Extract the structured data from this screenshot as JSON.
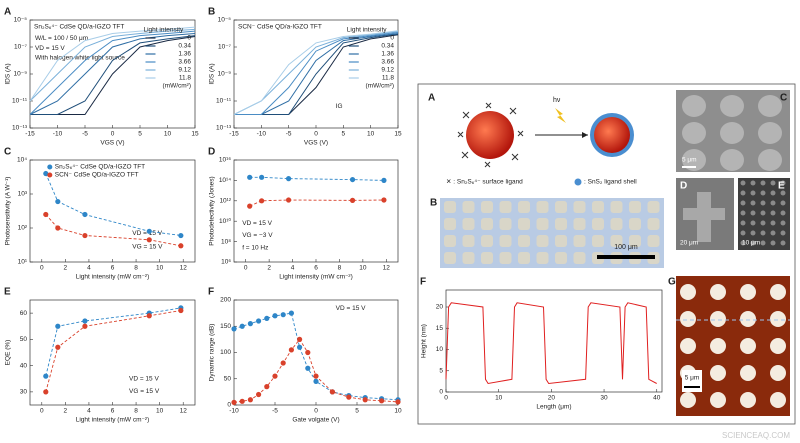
{
  "chart_data": [
    {
      "type": "line",
      "panel": "A",
      "title": "Sn₂S₆⁴⁻ CdSe QD/a-IGZO TFT",
      "annotations": [
        "W/L = 100 / 50 μm",
        "VD = 15 V",
        "With halogen white light source"
      ],
      "xlabel": "VGS (V)",
      "ylabel": "IDS (A)",
      "log_y": true,
      "legend": "right",
      "legend_title": "Light intensity",
      "legend_unit": "(mW/cm²)",
      "x": [
        -15,
        -10,
        -5,
        0,
        5,
        10,
        15
      ],
      "xlim": [
        -15,
        15
      ],
      "xticks": [
        -15,
        -10,
        -5,
        0,
        5,
        10,
        15
      ],
      "ylim": [
        1e-13,
        1e-05
      ],
      "yticks": [
        {
          "value": 1e-13,
          "label": "10⁻¹³"
        },
        {
          "value": 1e-11,
          "label": "10⁻¹¹"
        },
        {
          "value": 1e-09,
          "label": "10⁻⁹"
        },
        {
          "value": 1e-07,
          "label": "10⁻⁷"
        },
        {
          "value": 1e-05,
          "label": "10⁻⁵"
        }
      ],
      "series": [
        {
          "name": "0",
          "color": "#1a2a44",
          "values": [
            1e-12,
            1e-12,
            1e-12,
            1e-09,
            1e-07,
            3e-07,
            6e-07
          ]
        },
        {
          "name": "0.34",
          "color": "#1f4e79",
          "values": [
            1e-12,
            1e-12,
            1e-11,
            1e-08,
            2e-07,
            4e-07,
            7e-07
          ]
        },
        {
          "name": "1.36",
          "color": "#2f6ea5",
          "values": [
            1e-12,
            1e-11,
            1e-09,
            1e-07,
            4e-07,
            7e-07,
            1e-06
          ]
        },
        {
          "name": "3.66",
          "color": "#4a8cc4",
          "values": [
            1e-12,
            1e-10,
            1e-08,
            3e-07,
            7e-07,
            1e-06,
            1.5e-06
          ]
        },
        {
          "name": "9.12",
          "color": "#7ab0da",
          "values": [
            1e-11,
            1e-09,
            1e-07,
            6e-07,
            1e-06,
            1.5e-06,
            2e-06
          ]
        },
        {
          "name": "11.8",
          "color": "#a8cde8",
          "values": [
            1e-11,
            1e-08,
            3e-07,
            1e-06,
            1.5e-06,
            2e-06,
            3e-06
          ]
        }
      ]
    },
    {
      "type": "line",
      "panel": "B",
      "title": "SCN⁻ CdSe QD/a-IGZO TFT",
      "annotations": [
        "IG"
      ],
      "xlabel": "VGS (V)",
      "ylabel": "IDS (A)",
      "log_y": true,
      "legend": "right",
      "legend_title": "Light intensity",
      "legend_unit": "(mW/cm²)",
      "x": [
        -15,
        -10,
        -5,
        0,
        5,
        10,
        15
      ],
      "xlim": [
        -15,
        15
      ],
      "xticks": [
        -15,
        -10,
        -5,
        0,
        5,
        10,
        15
      ],
      "ylim": [
        1e-13,
        1e-05
      ],
      "yticks": [
        {
          "value": 1e-13,
          "label": "10⁻¹³"
        },
        {
          "value": 1e-11,
          "label": "10⁻¹¹"
        },
        {
          "value": 1e-09,
          "label": "10⁻⁹"
        },
        {
          "value": 1e-07,
          "label": "10⁻⁷"
        },
        {
          "value": 1e-05,
          "label": "10⁻⁵"
        }
      ],
      "series": [
        {
          "name": "0",
          "color": "#1a2a44",
          "values": [
            1e-12,
            1e-12,
            1e-12,
            1e-10,
            1e-07,
            4e-07,
            8e-07
          ]
        },
        {
          "name": "0.34",
          "color": "#1f4e79",
          "values": [
            1e-12,
            1e-12,
            1e-12,
            1e-09,
            2e-07,
            5e-07,
            9e-07
          ]
        },
        {
          "name": "1.36",
          "color": "#2f6ea5",
          "values": [
            1e-12,
            1e-12,
            1e-11,
            1e-08,
            3e-07,
            6e-07,
            1e-06
          ]
        },
        {
          "name": "3.66",
          "color": "#4a8cc4",
          "values": [
            1e-12,
            1e-12,
            1e-10,
            5e-08,
            4e-07,
            7e-07,
            1.2e-06
          ]
        },
        {
          "name": "9.12",
          "color": "#7ab0da",
          "values": [
            1e-12,
            1e-11,
            1e-09,
            1e-07,
            5e-07,
            8e-07,
            1.4e-06
          ]
        },
        {
          "name": "11.8",
          "color": "#a8cde8",
          "values": [
            1e-12,
            1e-11,
            5e-09,
            2e-07,
            6e-07,
            9e-07,
            1.6e-06
          ]
        }
      ]
    },
    {
      "type": "line",
      "panel": "C",
      "annotations": [
        "VD = 15 V",
        "VG = 15 V"
      ],
      "xlabel": "Light intensity (mW cm⁻²)",
      "ylabel": "Photosensitivity (A W⁻¹)",
      "log_y": true,
      "legend": "top",
      "markers": true,
      "dashed": true,
      "x": [
        0.34,
        1.36,
        3.66,
        9.12,
        11.8
      ],
      "xlim": [
        -1,
        13
      ],
      "xticks": [
        0,
        2,
        4,
        6,
        8,
        10,
        12
      ],
      "ylim": [
        10,
        10000
      ],
      "yticks": [
        {
          "value": 10,
          "label": "10¹"
        },
        {
          "value": 100,
          "label": "10²"
        },
        {
          "value": 1000,
          "label": "10³"
        },
        {
          "value": 10000,
          "label": "10⁴"
        }
      ],
      "series": [
        {
          "name": "Sn₂S₆⁴⁻ CdSe QD/a-IGZO TFT",
          "color": "#2e86c8",
          "values": [
            4000,
            600,
            250,
            80,
            60
          ]
        },
        {
          "name": "SCN⁻ CdSe QD/a-IGZO TFT",
          "color": "#d9412b",
          "values": [
            250,
            100,
            60,
            45,
            30
          ]
        }
      ]
    },
    {
      "type": "line",
      "panel": "D",
      "annotations": [
        "VD = 15 V",
        "VG = −3 V",
        "f = 10 Hz"
      ],
      "xlabel": "Light intensity (mW cm⁻²)",
      "ylabel": "Photodetectivity (Jones)",
      "log_y": true,
      "markers": true,
      "dashed": true,
      "x": [
        0.34,
        1.36,
        3.66,
        9.12,
        11.8
      ],
      "xlim": [
        -1,
        13
      ],
      "xticks": [
        0,
        2,
        4,
        6,
        8,
        10,
        12
      ],
      "ylim": [
        1000000.0,
        1e+16
      ],
      "yticks": [
        {
          "value": 1000000.0,
          "label": "10⁶"
        },
        {
          "value": 100000000.0,
          "label": "10⁸"
        },
        {
          "value": 10000000000.0,
          "label": "10¹⁰"
        },
        {
          "value": 1000000000000.0,
          "label": "10¹²"
        },
        {
          "value": 100000000000000.0,
          "label": "10¹⁴"
        },
        {
          "value": 1e+16,
          "label": "10¹⁶"
        }
      ],
      "series": [
        {
          "color": "#2e86c8",
          "values": [
            200000000000000.0,
            200000000000000.0,
            150000000000000.0,
            120000000000000.0,
            100000000000000.0
          ]
        },
        {
          "color": "#d9412b",
          "values": [
            300000000000.0,
            1000000000000.0,
            1200000000000.0,
            1100000000000.0,
            1200000000000.0
          ]
        }
      ]
    },
    {
      "type": "line",
      "panel": "E",
      "annotations": [
        "VD = 15 V",
        "VG = 15 V"
      ],
      "xlabel": "Light intensity (mW cm⁻²)",
      "ylabel": "EQE (%)",
      "markers": true,
      "dashed": true,
      "x": [
        0.34,
        1.36,
        3.66,
        9.12,
        11.8
      ],
      "xlim": [
        -1,
        13
      ],
      "xticks": [
        0,
        2,
        4,
        6,
        8,
        10,
        12
      ],
      "ylim": [
        25,
        65
      ],
      "yticks": [
        30,
        40,
        50,
        60
      ],
      "series": [
        {
          "color": "#2e86c8",
          "values": [
            36,
            55,
            57,
            60,
            62
          ]
        },
        {
          "color": "#d9412b",
          "values": [
            30,
            47,
            55,
            59,
            61
          ]
        }
      ]
    },
    {
      "type": "line",
      "panel": "F",
      "annotations": [
        "VD = 15 V"
      ],
      "xlabel": "Gate volgate (V)",
      "ylabel": "Dynamic range (dB)",
      "markers": true,
      "dashed": true,
      "x": [
        -10,
        -9,
        -8,
        -7,
        -6,
        -5,
        -4,
        -3,
        -2,
        -1,
        0,
        2,
        4,
        6,
        8,
        10
      ],
      "xlim": [
        -10,
        10
      ],
      "xticks": [
        -10,
        -5,
        0,
        5,
        10
      ],
      "ylim": [
        0,
        200
      ],
      "yticks": [
        0,
        50,
        100,
        150,
        200
      ],
      "series": [
        {
          "color": "#2e86c8",
          "values": [
            145,
            150,
            155,
            160,
            165,
            170,
            172,
            175,
            110,
            70,
            45,
            25,
            18,
            14,
            12,
            10
          ]
        },
        {
          "color": "#d9412b",
          "values": [
            5,
            7,
            10,
            20,
            35,
            55,
            80,
            105,
            125,
            100,
            55,
            25,
            15,
            10,
            8,
            6
          ]
        }
      ]
    },
    {
      "type": "line",
      "panel": "F",
      "xlabel": "Length (μm)",
      "ylabel": "Height (nm)",
      "x": [
        0,
        0.5,
        1,
        7,
        7.5,
        8,
        12.5,
        13,
        13.5,
        18.5,
        19,
        19.5,
        26.5,
        27,
        27.5,
        33,
        33.5,
        34,
        34.5,
        38,
        38.5,
        40
      ],
      "xlim": [
        0,
        41
      ],
      "xticks": [
        0,
        10,
        20,
        30,
        40
      ],
      "ylim": [
        0,
        24
      ],
      "yticks": [
        0,
        5,
        10,
        15,
        20
      ],
      "series": [
        {
          "color": "#e02020",
          "values": [
            3,
            20,
            21,
            20,
            3,
            2,
            3,
            20,
            21,
            20,
            3,
            2,
            3,
            20,
            21,
            20,
            3,
            20,
            21,
            20,
            3,
            2
          ]
        }
      ]
    }
  ],
  "figure_panel": {
    "labels": [
      "A",
      "B",
      "C",
      "D",
      "E",
      "G"
    ],
    "hv": "hν",
    "ligand_legend": [
      "✕ : Sn₂S₆⁴⁻ surface ligand",
      ": SnS₂ ligand shell"
    ],
    "scale_bars": [
      "100 μm",
      "5 μm",
      "20 μm",
      "10 μm",
      "5 μm"
    ]
  },
  "watermark": "SCIENCEAQ.COM"
}
